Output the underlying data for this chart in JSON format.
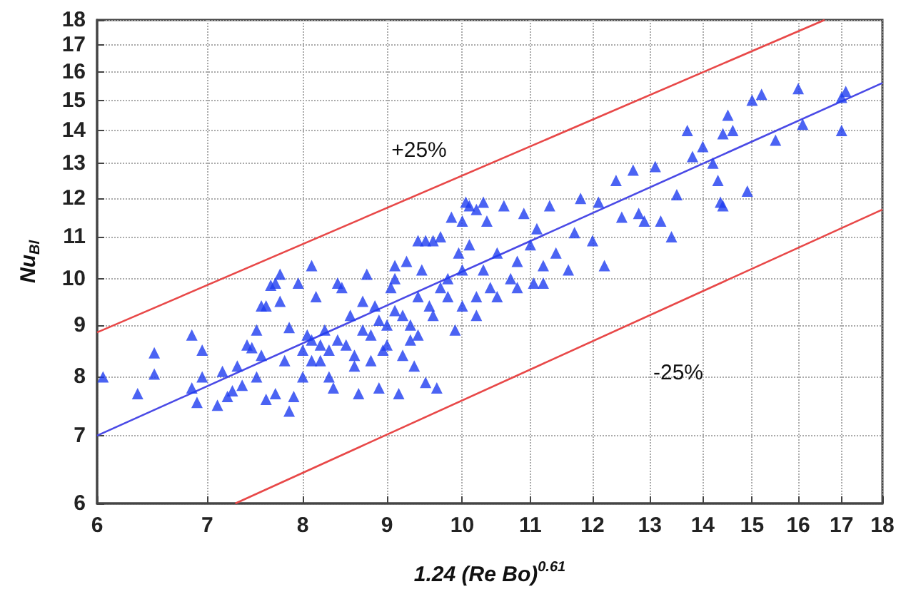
{
  "chart_data": {
    "type": "scatter",
    "xlabel": "1.24 (Re Bo)$^{0.61}$",
    "ylabel": "Nu$_{Bl}$",
    "log": "xy",
    "xlim": [
      6,
      18
    ],
    "ylim": [
      6,
      18
    ],
    "xticks": [
      6,
      7,
      8,
      9,
      10,
      11,
      12,
      13,
      14,
      15,
      16,
      17,
      18
    ],
    "yticks": [
      6,
      7,
      8,
      9,
      10,
      11,
      12,
      13,
      14,
      15,
      16,
      17,
      18
    ],
    "grid": true,
    "annotations": [
      "+25%",
      "-25%"
    ],
    "series": [
      {
        "marker": "triangle",
        "color": "#1e3cf0",
        "x": [
          6.05,
          6.35,
          6.5,
          6.5,
          6.85,
          6.85,
          6.9,
          6.95,
          6.95,
          7.1,
          7.15,
          7.2,
          7.25,
          7.3,
          7.35,
          7.4,
          7.45,
          7.5,
          7.5,
          7.55,
          7.55,
          7.6,
          7.6,
          7.65,
          7.7,
          7.7,
          7.75,
          7.75,
          7.8,
          7.85,
          7.85,
          7.9,
          7.95,
          8.0,
          8.0,
          8.05,
          8.1,
          8.1,
          8.15,
          8.2,
          8.25,
          8.3,
          8.35,
          8.4,
          8.45,
          8.5,
          8.55,
          8.6,
          8.65,
          8.7,
          8.75,
          8.8,
          8.85,
          8.9,
          8.95,
          9.0,
          9.05,
          9.1,
          9.15,
          9.2,
          9.25,
          9.3,
          9.35,
          9.4,
          9.45,
          9.5,
          9.55,
          9.6,
          9.65,
          9.7,
          9.8,
          9.85,
          9.9,
          9.95,
          10.0,
          10.05,
          10.1,
          10.2,
          10.3,
          10.35,
          10.4,
          10.5,
          10.6,
          10.7,
          10.8,
          10.9,
          11.0,
          11.05,
          11.1,
          11.2,
          11.3,
          11.4,
          11.6,
          11.7,
          11.8,
          12.0,
          12.1,
          12.2,
          12.4,
          12.5,
          12.7,
          12.8,
          12.9,
          13.1,
          13.2,
          13.4,
          13.5,
          13.7,
          13.8,
          14.0,
          14.2,
          14.3,
          14.35,
          14.4,
          14.4,
          14.5,
          14.6,
          14.9,
          15.0,
          15.2,
          15.5,
          16.0,
          16.1,
          17.0,
          17.1,
          17.0,
          9.4,
          9.5,
          9.7,
          10.0,
          10.1,
          10.2,
          10.3,
          9.1,
          8.1,
          8.2,
          8.3,
          8.4,
          8.6,
          8.7,
          8.8,
          8.9,
          9.0,
          9.1,
          9.2,
          9.3,
          9.4,
          9.6,
          9.8,
          10.0,
          10.2,
          10.5,
          10.8,
          11.2
        ],
        "values": [
          8.0,
          7.7,
          8.05,
          8.45,
          7.8,
          8.8,
          7.55,
          8.5,
          8.0,
          7.5,
          8.1,
          7.65,
          7.75,
          8.2,
          7.85,
          8.6,
          8.55,
          8.0,
          8.9,
          9.4,
          8.4,
          7.6,
          9.4,
          9.85,
          9.9,
          7.7,
          10.1,
          9.5,
          8.3,
          7.4,
          8.95,
          7.65,
          9.9,
          8.5,
          8.0,
          8.8,
          10.3,
          8.3,
          9.6,
          8.6,
          8.9,
          8.0,
          7.8,
          9.9,
          9.8,
          8.6,
          9.2,
          8.2,
          7.7,
          9.5,
          10.1,
          8.8,
          9.4,
          7.8,
          8.5,
          9.0,
          9.8,
          10.0,
          7.7,
          9.2,
          10.4,
          8.7,
          8.2,
          9.6,
          10.2,
          7.9,
          9.4,
          10.9,
          7.8,
          9.8,
          10.0,
          11.5,
          8.9,
          10.6,
          9.4,
          11.9,
          10.8,
          9.6,
          10.2,
          11.4,
          9.8,
          10.6,
          11.8,
          10.0,
          10.4,
          11.6,
          10.8,
          9.9,
          11.2,
          10.3,
          11.8,
          10.6,
          10.2,
          11.1,
          12.0,
          10.9,
          11.9,
          10.3,
          12.5,
          11.5,
          12.8,
          11.6,
          11.4,
          12.9,
          11.4,
          11.0,
          12.1,
          14.0,
          13.2,
          13.5,
          13.0,
          12.5,
          11.9,
          11.8,
          13.9,
          14.5,
          14.0,
          12.2,
          15.0,
          15.2,
          13.7,
          15.4,
          14.2,
          15.1,
          15.3,
          14.0,
          10.9,
          10.9,
          11.0,
          11.4,
          11.8,
          11.7,
          11.9,
          10.3,
          8.7,
          8.3,
          8.5,
          8.7,
          8.4,
          8.9,
          8.3,
          9.1,
          8.6,
          9.3,
          8.4,
          9.0,
          8.8,
          9.2,
          9.6,
          10.2,
          9.2,
          9.6,
          9.8,
          9.9
        ]
      },
      {
        "type": "line",
        "marker": "none",
        "color": "#4a4ae6",
        "x": [
          6,
          18
        ],
        "values": [
          7.0,
          15.6
        ]
      },
      {
        "type": "line",
        "marker": "none",
        "color": "#e84848",
        "x": [
          6,
          16.6
        ],
        "values": [
          8.85,
          18
        ]
      },
      {
        "type": "line",
        "marker": "none",
        "color": "#e84848",
        "x": [
          7.28,
          18
        ],
        "values": [
          6,
          11.7
        ]
      }
    ]
  }
}
